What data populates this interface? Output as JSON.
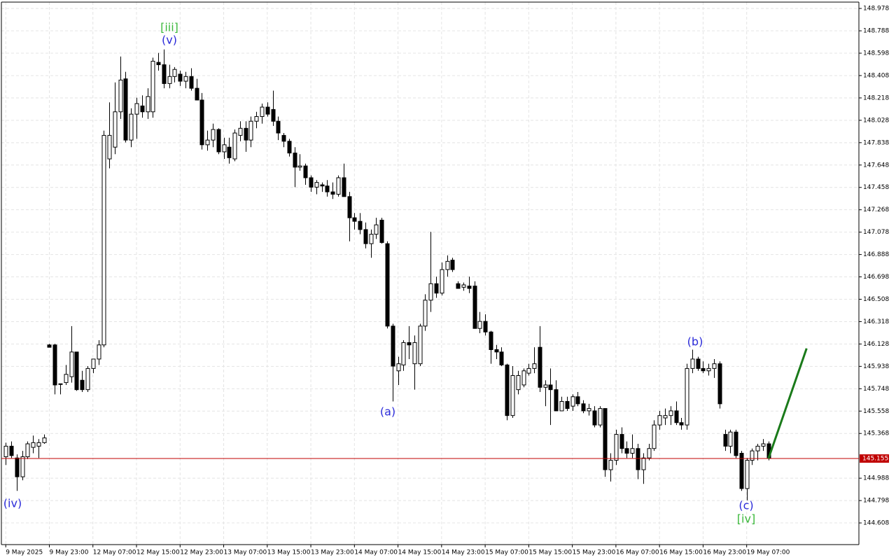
{
  "chart_data": {
    "type": "candlestick",
    "ohlc": [
      [
        145.17,
        145.29,
        145.1,
        145.26
      ],
      [
        145.26,
        145.3,
        145.16,
        145.18
      ],
      [
        145.16,
        145.19,
        144.88,
        145.0
      ],
      [
        145.0,
        145.22,
        144.97,
        145.17
      ],
      [
        145.17,
        145.3,
        145.15,
        145.28
      ],
      [
        145.25,
        145.35,
        145.2,
        145.29
      ],
      [
        145.26,
        145.32,
        145.16,
        145.29
      ],
      [
        145.29,
        145.36,
        145.28,
        145.33
      ],
      [
        146.12,
        146.13,
        146.1,
        146.1
      ],
      [
        146.12,
        146.13,
        145.7,
        145.78
      ],
      [
        145.79,
        145.79,
        145.7,
        145.79
      ],
      [
        145.8,
        145.95,
        145.78,
        145.87
      ],
      [
        145.85,
        146.28,
        145.8,
        146.06
      ],
      [
        146.06,
        146.06,
        145.73,
        145.74
      ],
      [
        145.82,
        145.9,
        145.72,
        145.74
      ],
      [
        145.74,
        145.94,
        145.72,
        145.92
      ],
      [
        145.92,
        146.0,
        145.88,
        146.0
      ],
      [
        146.0,
        146.16,
        145.95,
        146.12
      ],
      [
        146.12,
        147.94,
        146.1,
        147.9
      ],
      [
        147.7,
        148.18,
        147.62,
        147.9
      ],
      [
        147.8,
        148.35,
        147.74,
        148.1
      ],
      [
        148.1,
        148.57,
        148.04,
        148.37
      ],
      [
        148.38,
        148.44,
        147.84,
        147.86
      ],
      [
        147.86,
        148.13,
        147.8,
        148.08
      ],
      [
        148.08,
        148.22,
        147.87,
        148.17
      ],
      [
        148.15,
        148.24,
        148.05,
        148.1
      ],
      [
        148.1,
        148.3,
        148.04,
        148.23
      ],
      [
        148.1,
        148.56,
        148.05,
        148.53
      ],
      [
        148.52,
        148.6,
        148.45,
        148.5
      ],
      [
        148.5,
        148.63,
        148.3,
        148.34
      ],
      [
        148.34,
        148.5,
        148.3,
        148.4
      ],
      [
        148.4,
        148.48,
        148.35,
        148.46
      ],
      [
        148.42,
        148.45,
        148.32,
        148.36
      ],
      [
        148.36,
        148.44,
        148.3,
        148.4
      ],
      [
        148.4,
        148.47,
        148.28,
        148.3
      ],
      [
        148.3,
        148.38,
        148.2,
        148.2
      ],
      [
        148.2,
        148.26,
        147.78,
        147.82
      ],
      [
        147.82,
        147.94,
        147.77,
        147.86
      ],
      [
        147.86,
        148.0,
        147.8,
        147.95
      ],
      [
        147.95,
        147.96,
        147.74,
        147.76
      ],
      [
        147.76,
        147.88,
        147.7,
        147.82
      ],
      [
        147.8,
        147.88,
        147.66,
        147.71
      ],
      [
        147.7,
        147.95,
        147.68,
        147.92
      ],
      [
        147.9,
        148.02,
        147.85,
        147.96
      ],
      [
        147.96,
        148.02,
        147.76,
        147.86
      ],
      [
        147.86,
        148.06,
        147.8,
        148.02
      ],
      [
        148.02,
        148.1,
        147.96,
        148.06
      ],
      [
        148.06,
        148.17,
        148.0,
        148.14
      ],
      [
        148.14,
        148.18,
        148.06,
        148.08
      ],
      [
        148.12,
        148.28,
        147.98,
        148.02
      ],
      [
        148.02,
        148.06,
        147.86,
        147.92
      ],
      [
        147.9,
        147.92,
        147.8,
        147.85
      ],
      [
        147.85,
        147.87,
        147.72,
        147.75
      ],
      [
        147.75,
        147.8,
        147.46,
        147.63
      ],
      [
        147.63,
        147.74,
        147.6,
        147.64
      ],
      [
        147.64,
        147.66,
        147.48,
        147.54
      ],
      [
        147.54,
        147.56,
        147.42,
        147.46
      ],
      [
        147.46,
        147.52,
        147.4,
        147.5
      ],
      [
        147.48,
        147.5,
        147.42,
        147.47
      ],
      [
        147.47,
        147.52,
        147.38,
        147.42
      ],
      [
        147.42,
        147.5,
        147.36,
        147.4
      ],
      [
        147.4,
        147.56,
        147.38,
        147.54
      ],
      [
        147.54,
        147.66,
        147.38,
        147.38
      ],
      [
        147.38,
        147.42,
        147.0,
        147.2
      ],
      [
        147.2,
        147.24,
        147.1,
        147.17
      ],
      [
        147.17,
        147.24,
        147.06,
        147.1
      ],
      [
        147.1,
        147.16,
        146.94,
        146.98
      ],
      [
        146.98,
        147.1,
        146.86,
        147.06
      ],
      [
        147.06,
        147.2,
        147.02,
        147.14
      ],
      [
        147.18,
        147.2,
        146.98,
        146.99
      ],
      [
        146.98,
        147.0,
        146.26,
        146.28
      ],
      [
        146.28,
        146.3,
        145.64,
        145.94
      ],
      [
        145.9,
        146.02,
        145.78,
        145.96
      ],
      [
        145.95,
        146.16,
        145.9,
        146.14
      ],
      [
        146.14,
        146.28,
        146.0,
        146.12
      ],
      [
        145.96,
        146.2,
        145.74,
        146.14
      ],
      [
        145.96,
        146.3,
        145.94,
        146.28
      ],
      [
        146.28,
        146.55,
        146.24,
        146.5
      ],
      [
        146.5,
        147.08,
        146.4,
        146.64
      ],
      [
        146.64,
        146.7,
        146.52,
        146.56
      ],
      [
        146.56,
        146.82,
        146.54,
        146.76
      ],
      [
        146.76,
        146.88,
        146.7,
        146.83
      ],
      [
        146.84,
        146.86,
        146.74,
        146.76
      ],
      [
        146.64,
        146.66,
        146.6,
        146.6
      ],
      [
        146.61,
        146.65,
        146.58,
        146.63
      ],
      [
        146.62,
        146.7,
        146.56,
        146.6
      ],
      [
        146.62,
        146.66,
        146.26,
        146.26
      ],
      [
        146.26,
        146.4,
        146.22,
        146.32
      ],
      [
        146.32,
        146.38,
        146.2,
        146.23
      ],
      [
        146.23,
        146.24,
        145.96,
        146.08
      ],
      [
        146.08,
        146.12,
        146.0,
        146.06
      ],
      [
        146.06,
        146.1,
        145.94,
        145.95
      ],
      [
        145.95,
        145.96,
        145.48,
        145.52
      ],
      [
        145.52,
        145.94,
        145.5,
        145.86
      ],
      [
        145.74,
        145.9,
        145.7,
        145.86
      ],
      [
        145.78,
        145.92,
        145.76,
        145.9
      ],
      [
        145.88,
        145.96,
        145.86,
        145.92
      ],
      [
        145.92,
        146.1,
        145.88,
        145.96
      ],
      [
        146.1,
        146.28,
        145.72,
        145.76
      ],
      [
        145.76,
        145.82,
        145.6,
        145.78
      ],
      [
        145.78,
        145.92,
        145.44,
        145.74
      ],
      [
        145.74,
        145.82,
        145.56,
        145.56
      ],
      [
        145.56,
        145.68,
        145.56,
        145.64
      ],
      [
        145.64,
        145.68,
        145.56,
        145.58
      ],
      [
        145.6,
        145.7,
        145.56,
        145.68
      ],
      [
        145.68,
        145.72,
        145.6,
        145.62
      ],
      [
        145.62,
        145.65,
        145.54,
        145.56
      ],
      [
        145.56,
        145.62,
        145.52,
        145.58
      ],
      [
        145.56,
        145.6,
        145.42,
        145.44
      ],
      [
        145.44,
        145.6,
        145.42,
        145.58
      ],
      [
        145.58,
        145.58,
        145.0,
        145.06
      ],
      [
        145.06,
        145.2,
        144.96,
        145.14
      ],
      [
        145.14,
        145.4,
        145.1,
        145.36
      ],
      [
        145.36,
        145.42,
        145.2,
        145.24
      ],
      [
        145.24,
        145.3,
        145.16,
        145.2
      ],
      [
        145.2,
        145.36,
        145.16,
        145.24
      ],
      [
        145.24,
        145.28,
        144.98,
        145.06
      ],
      [
        145.06,
        145.2,
        144.94,
        145.16
      ],
      [
        145.16,
        145.28,
        145.14,
        145.24
      ],
      [
        145.24,
        145.48,
        145.22,
        145.44
      ],
      [
        145.44,
        145.56,
        145.4,
        145.52
      ],
      [
        145.5,
        145.58,
        145.44,
        145.52
      ],
      [
        145.52,
        145.6,
        145.44,
        145.56
      ],
      [
        145.56,
        145.64,
        145.44,
        145.46
      ],
      [
        145.46,
        145.5,
        145.4,
        145.44
      ],
      [
        145.44,
        145.96,
        145.4,
        145.92
      ],
      [
        145.92,
        146.08,
        145.88,
        146.0
      ],
      [
        146.0,
        146.02,
        145.9,
        145.92
      ],
      [
        145.92,
        145.98,
        145.88,
        145.9
      ],
      [
        145.9,
        145.96,
        145.86,
        145.92
      ],
      [
        145.92,
        146.0,
        145.84,
        145.96
      ],
      [
        145.96,
        145.98,
        145.58,
        145.62
      ],
      [
        145.36,
        145.4,
        145.22,
        145.26
      ],
      [
        145.26,
        145.4,
        145.2,
        145.38
      ],
      [
        145.38,
        145.4,
        145.16,
        145.18
      ],
      [
        145.2,
        145.22,
        144.88,
        144.9
      ],
      [
        144.9,
        145.16,
        144.8,
        145.14
      ],
      [
        145.14,
        145.24,
        145.1,
        145.22
      ],
      [
        145.22,
        145.28,
        145.14,
        145.26
      ],
      [
        145.26,
        145.32,
        145.22,
        145.28
      ],
      [
        145.28,
        145.3,
        145.14,
        145.16
      ]
    ],
    "bull_color": "#ffffff",
    "bear_color": "#000000",
    "ylim": [
      144.424,
      149.032
    ],
    "yticks": [
      148.978,
      148.788,
      148.598,
      148.408,
      148.218,
      148.028,
      147.838,
      147.648,
      147.458,
      147.268,
      147.078,
      146.888,
      146.698,
      146.508,
      146.318,
      146.128,
      145.938,
      145.748,
      145.558,
      145.368,
      144.988,
      144.798,
      144.608
    ],
    "xlim": [
      -0.8,
      156.6
    ],
    "xticks": [
      {
        "value": 0,
        "label": "9 May 2025"
      },
      {
        "value": 8,
        "label": "9 May 23:00"
      },
      {
        "value": 16,
        "label": "12 May 07:00"
      },
      {
        "value": 24,
        "label": "12 May 15:00"
      },
      {
        "value": 32,
        "label": "12 May 23:00"
      },
      {
        "value": 40,
        "label": "13 May 07:00"
      },
      {
        "value": 48,
        "label": "13 May 15:00"
      },
      {
        "value": 56,
        "label": "13 May 23:00"
      },
      {
        "value": 64,
        "label": "14 May 07:00"
      },
      {
        "value": 72,
        "label": "14 May 15:00"
      },
      {
        "value": 80,
        "label": "14 May 23:00"
      },
      {
        "value": 88,
        "label": "15 May 07:00"
      },
      {
        "value": 96,
        "label": "15 May 15:00"
      },
      {
        "value": 104,
        "label": "15 May 23:00"
      },
      {
        "value": 112,
        "label": "16 May 07:00"
      },
      {
        "value": 120,
        "label": "16 May 15:00"
      },
      {
        "value": 128,
        "label": "16 May 23:00"
      },
      {
        "value": 136,
        "label": "19 May 07:00"
      }
    ],
    "grid": true,
    "current_price": 145.155,
    "current_price_color": "#c00000",
    "forecast": {
      "x": [
        140,
        147
      ],
      "y": [
        145.155,
        146.09
      ],
      "color": "#1a7a1a"
    },
    "annotations": [
      "(iv)",
      "[iii]",
      "(v)",
      "(a)",
      "(b)",
      "(c)",
      "[iv]"
    ]
  }
}
